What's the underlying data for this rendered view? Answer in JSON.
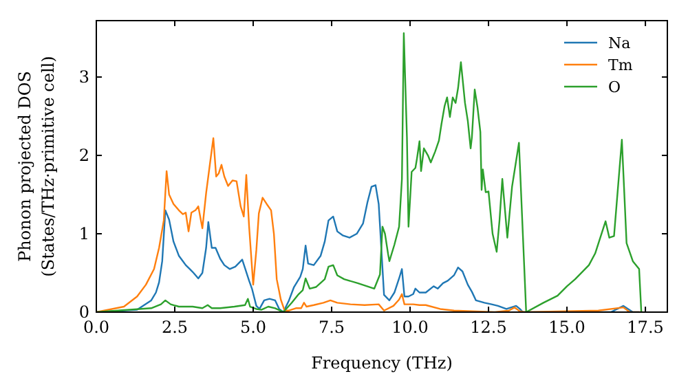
{
  "chart_data": {
    "type": "line",
    "xlabel": "Frequency (THz)",
    "ylabel": "Phonon projected DOS\n(States/THz·primitive cell)",
    "xlim": [
      0,
      18.2
    ],
    "ylim": [
      0,
      3.72
    ],
    "xticks": [
      {
        "value": 0,
        "label": "0.0"
      },
      {
        "value": 2.5,
        "label": "2.5"
      },
      {
        "value": 5,
        "label": "5.0"
      },
      {
        "value": 7.5,
        "label": "7.5"
      },
      {
        "value": 10,
        "label": "10.0"
      },
      {
        "value": 12.5,
        "label": "12.5"
      },
      {
        "value": 15,
        "label": "15.0"
      },
      {
        "value": 17.5,
        "label": "17.5"
      }
    ],
    "yticks": [
      0,
      1,
      2,
      3
    ],
    "legend": "top right",
    "grid": false,
    "series": [
      {
        "name": "Na",
        "color": "#1f77b4",
        "x": [
          0,
          1.3,
          1.75,
          1.9,
          2.0,
          2.1,
          2.2,
          2.32,
          2.46,
          2.63,
          2.76,
          2.85,
          2.98,
          3.1,
          3.25,
          3.38,
          3.5,
          3.57,
          3.68,
          3.8,
          3.95,
          4.08,
          4.25,
          4.43,
          4.65,
          4.74,
          4.87,
          4.96,
          5.1,
          5.2,
          5.35,
          5.52,
          5.7,
          5.83,
          5.96,
          6.14,
          6.3,
          6.5,
          6.58,
          6.67,
          6.75,
          6.93,
          7.15,
          7.28,
          7.4,
          7.55,
          7.68,
          7.85,
          8.07,
          8.3,
          8.5,
          8.64,
          8.77,
          8.9,
          9.0,
          9.17,
          9.34,
          9.5,
          9.65,
          9.74,
          9.82,
          9.95,
          10.1,
          10.17,
          10.3,
          10.5,
          10.75,
          10.88,
          11.05,
          11.2,
          11.4,
          11.53,
          11.67,
          11.84,
          11.97,
          12.1,
          12.37,
          12.6,
          12.8,
          13.07,
          13.38,
          13.5,
          13.6,
          16.4,
          16.8,
          17.1,
          17.3
        ],
        "values": [
          0,
          0.03,
          0.15,
          0.25,
          0.38,
          0.65,
          1.3,
          1.18,
          0.9,
          0.72,
          0.65,
          0.6,
          0.55,
          0.5,
          0.43,
          0.5,
          0.82,
          1.15,
          0.82,
          0.82,
          0.68,
          0.6,
          0.55,
          0.58,
          0.67,
          0.56,
          0.4,
          0.3,
          0.08,
          0.04,
          0.15,
          0.17,
          0.15,
          0.04,
          0,
          0.15,
          0.32,
          0.45,
          0.55,
          0.85,
          0.62,
          0.6,
          0.72,
          0.9,
          1.17,
          1.22,
          1.03,
          0.98,
          0.95,
          1.0,
          1.13,
          1.4,
          1.6,
          1.62,
          1.38,
          0.22,
          0.15,
          0.25,
          0.43,
          0.55,
          0.2,
          0.2,
          0.23,
          0.3,
          0.25,
          0.25,
          0.33,
          0.3,
          0.37,
          0.4,
          0.47,
          0.57,
          0.52,
          0.35,
          0.26,
          0.15,
          0.12,
          0.1,
          0.08,
          0.04,
          0.08,
          0.04,
          0,
          0,
          0.08,
          0,
          0
        ]
      },
      {
        "name": "Tm",
        "color": "#ff7f0e",
        "x": [
          0,
          0.88,
          1.3,
          1.58,
          1.84,
          2.0,
          2.15,
          2.24,
          2.32,
          2.46,
          2.63,
          2.76,
          2.85,
          2.94,
          3.03,
          3.16,
          3.25,
          3.38,
          3.5,
          3.64,
          3.73,
          3.82,
          3.9,
          3.99,
          4.08,
          4.2,
          4.34,
          4.47,
          4.6,
          4.7,
          4.78,
          4.87,
          5.0,
          5.1,
          5.18,
          5.3,
          5.43,
          5.57,
          5.66,
          5.75,
          5.88,
          6.0,
          6.14,
          6.36,
          6.53,
          6.62,
          6.7,
          6.93,
          7.24,
          7.46,
          7.68,
          8.1,
          8.55,
          9.0,
          9.17,
          9.47,
          9.65,
          9.74,
          9.82,
          10.1,
          10.3,
          10.5,
          10.96,
          11.4,
          12.7,
          13.15,
          13.33,
          13.5,
          13.7,
          16.0,
          16.8,
          17.0,
          17.4
        ],
        "values": [
          0,
          0.07,
          0.2,
          0.35,
          0.55,
          0.82,
          1.17,
          1.8,
          1.5,
          1.38,
          1.3,
          1.25,
          1.27,
          1.03,
          1.27,
          1.3,
          1.35,
          1.07,
          1.52,
          1.95,
          2.22,
          1.73,
          1.77,
          1.88,
          1.73,
          1.61,
          1.68,
          1.67,
          1.35,
          1.22,
          1.75,
          1.09,
          0.35,
          0.79,
          1.26,
          1.46,
          1.38,
          1.3,
          1.0,
          0.42,
          0.16,
          0.02,
          0.02,
          0.05,
          0.05,
          0.12,
          0.07,
          0.09,
          0.12,
          0.15,
          0.12,
          0.1,
          0.09,
          0.1,
          0.02,
          0.08,
          0.16,
          0.23,
          0.1,
          0.1,
          0.09,
          0.09,
          0.04,
          0.02,
          0,
          0.02,
          0.06,
          0.01,
          0,
          0.02,
          0.06,
          0,
          0
        ]
      },
      {
        "name": "O",
        "color": "#2ca02c",
        "x": [
          0,
          1.75,
          2.06,
          2.2,
          2.37,
          2.63,
          3.07,
          3.38,
          3.55,
          3.68,
          3.95,
          4.4,
          4.74,
          4.83,
          4.9,
          5.1,
          5.26,
          5.48,
          5.7,
          5.96,
          6.23,
          6.45,
          6.58,
          6.67,
          6.8,
          7.0,
          7.28,
          7.4,
          7.55,
          7.68,
          7.9,
          8.33,
          8.86,
          9.04,
          9.12,
          9.2,
          9.3,
          9.34,
          9.5,
          9.65,
          9.74,
          9.8,
          9.9,
          9.95,
          10.05,
          10.17,
          10.22,
          10.3,
          10.35,
          10.44,
          10.57,
          10.66,
          10.8,
          10.92,
          11.0,
          11.1,
          11.18,
          11.27,
          11.36,
          11.45,
          11.53,
          11.62,
          11.75,
          11.84,
          11.93,
          11.97,
          12.06,
          12.15,
          12.24,
          12.28,
          12.32,
          12.41,
          12.5,
          12.63,
          12.76,
          12.85,
          12.94,
          13.1,
          13.25,
          13.47,
          13.7,
          14.25,
          14.7,
          15.0,
          15.26,
          15.48,
          15.7,
          15.9,
          16.23,
          16.35,
          16.5,
          16.75,
          16.9,
          17.1,
          17.3,
          17.37
        ],
        "values": [
          0,
          0.05,
          0.1,
          0.15,
          0.1,
          0.07,
          0.07,
          0.05,
          0.09,
          0.05,
          0.05,
          0.07,
          0.09,
          0.17,
          0.07,
          0.04,
          0.03,
          0.07,
          0.05,
          0,
          0.12,
          0.23,
          0.28,
          0.43,
          0.3,
          0.32,
          0.42,
          0.58,
          0.6,
          0.47,
          0.42,
          0.37,
          0.3,
          0.48,
          1.09,
          1.0,
          0.74,
          0.65,
          0.86,
          1.09,
          1.7,
          3.56,
          2.23,
          1.09,
          1.79,
          1.84,
          1.96,
          2.18,
          1.8,
          2.09,
          2.0,
          1.91,
          2.05,
          2.19,
          2.4,
          2.63,
          2.74,
          2.49,
          2.74,
          2.67,
          2.86,
          3.19,
          2.67,
          2.44,
          2.09,
          2.23,
          2.84,
          2.61,
          2.3,
          1.56,
          1.82,
          1.53,
          1.54,
          1.0,
          0.77,
          1.17,
          1.7,
          0.95,
          1.6,
          2.16,
          0,
          0.12,
          0.21,
          0.33,
          0.42,
          0.51,
          0.6,
          0.75,
          1.16,
          0.95,
          0.97,
          2.2,
          0.88,
          0.65,
          0.55,
          0
        ]
      }
    ]
  }
}
